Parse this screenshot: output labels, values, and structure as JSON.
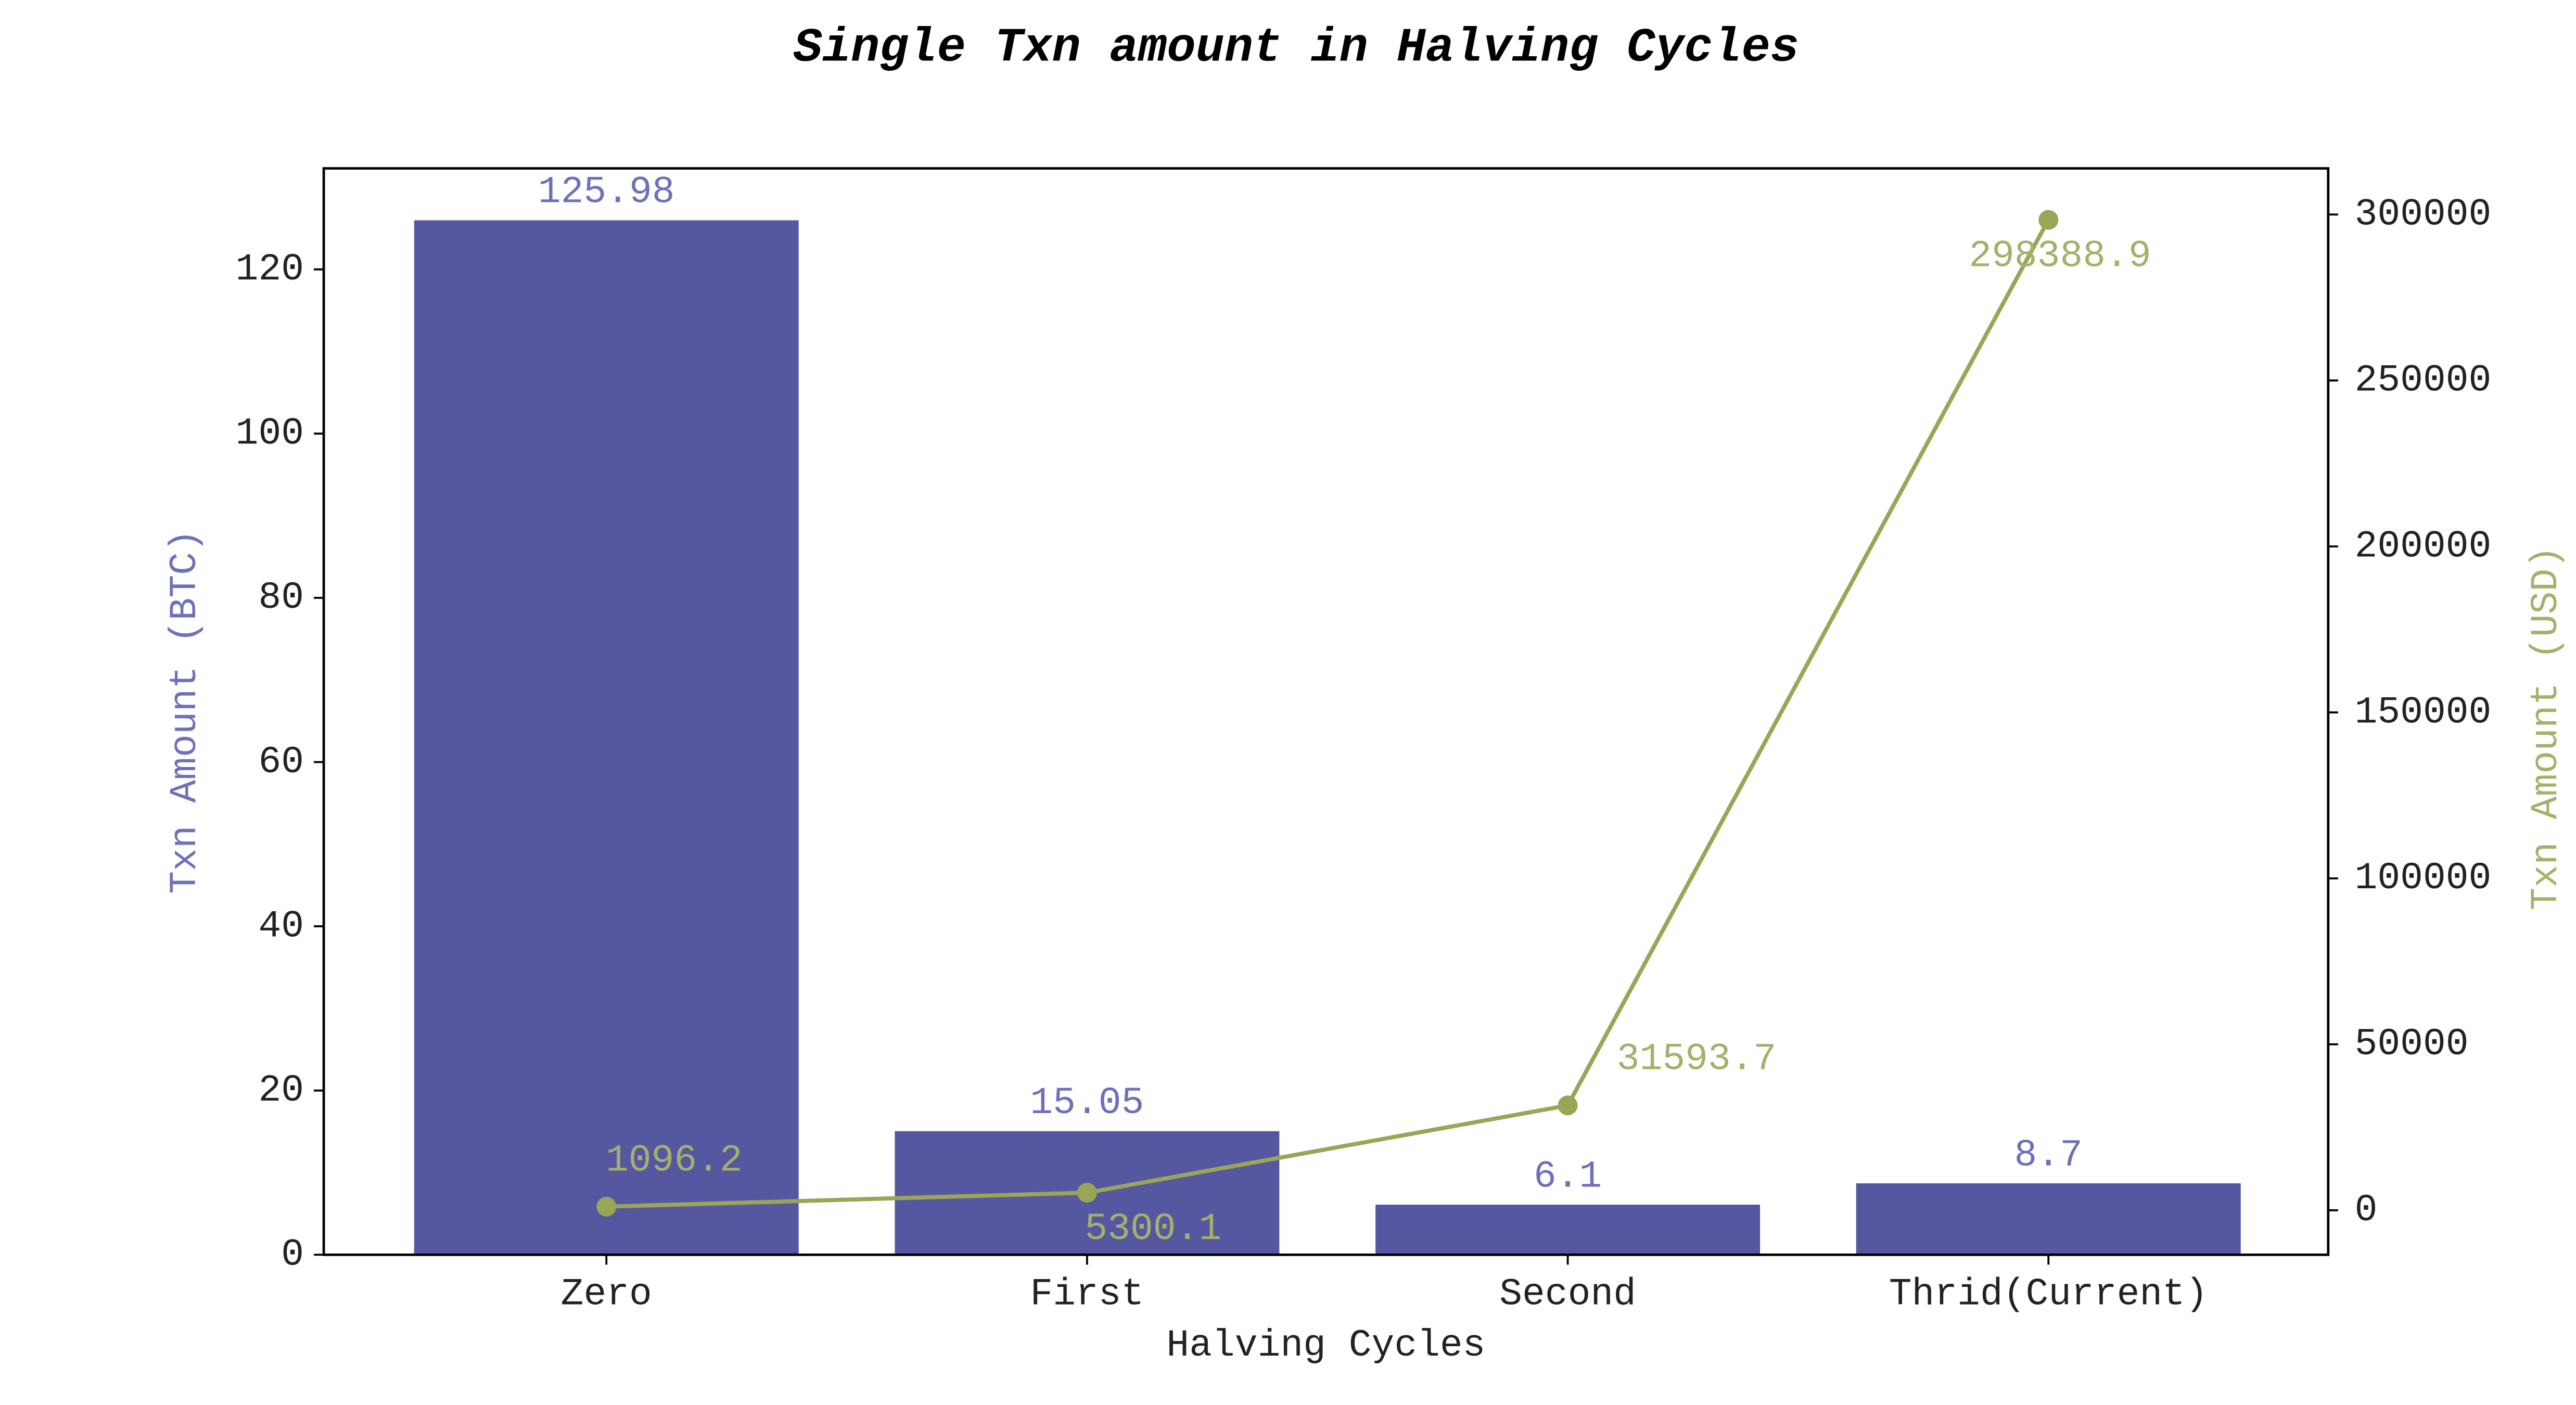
{
  "chart_data": {
    "type": "bar",
    "title": "Single Txn amount in Halving Cycles",
    "xlabel": "Halving Cycles",
    "ylabel": "Txn Amount (BTC)",
    "y2label": "Txn Amount (USD)",
    "categories": [
      "Zero",
      "First",
      "Second",
      "Thrid(Current)"
    ],
    "series": [
      {
        "type": "bar",
        "color": "#5557a0",
        "label_color": "#6e70b8",
        "values": [
          125.98,
          15.05,
          6.1,
          8.7
        ]
      },
      {
        "type": "line",
        "axis": "y2",
        "color": "#98a656",
        "label_color": "#a5b06a",
        "values": [
          1096.2,
          5300.1,
          31593.7,
          298388.9
        ]
      }
    ],
    "ylim": [
      0,
      132.3
    ],
    "yticks": [
      0,
      20,
      40,
      60,
      80,
      100,
      120
    ],
    "y2lim": [
      -13400,
      313900
    ],
    "y2ticks": [
      0,
      50000,
      100000,
      150000,
      200000,
      250000,
      300000
    ]
  }
}
